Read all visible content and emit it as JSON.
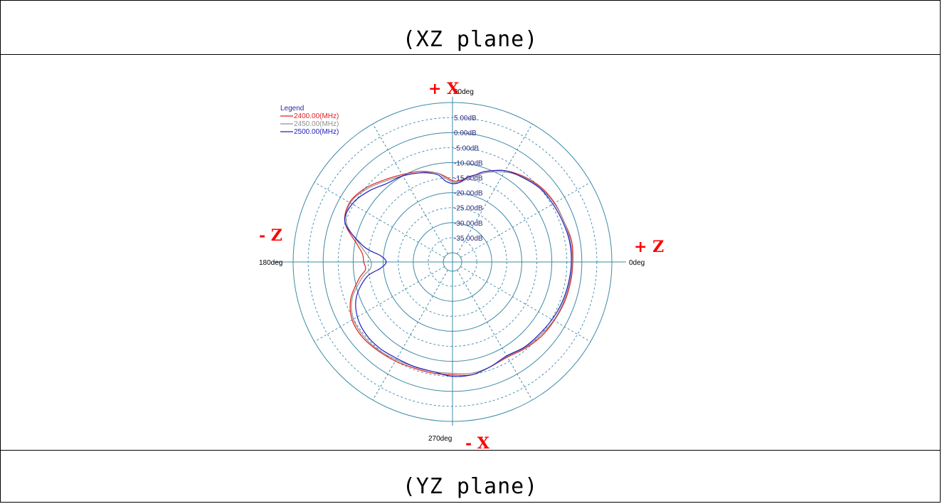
{
  "captions": {
    "top": "(XZ plane)",
    "bottom": "(YZ plane)"
  },
  "chart_data": {
    "type": "polar",
    "legend_title": "Legend",
    "legend_placement": "top-left",
    "angle_labels": {
      "a0": "0deg",
      "a90": "90deg",
      "a180": "180deg",
      "a270": "270deg"
    },
    "radial_range_db": [
      -40,
      10
    ],
    "radial_ticks": [
      {
        "value": 5,
        "label": "5.00dB"
      },
      {
        "value": 0,
        "label": "0.00dB"
      },
      {
        "value": -5,
        "label": "-5.00dB"
      },
      {
        "value": -10,
        "label": "-10.00dB"
      },
      {
        "value": -15,
        "label": "-15.00dB"
      },
      {
        "value": -20,
        "label": "-20.00dB"
      },
      {
        "value": -25,
        "label": "-25.00dB"
      },
      {
        "value": -30,
        "label": "-30.00dB"
      },
      {
        "value": -35,
        "label": "-35.00dB"
      }
    ],
    "axis_annotations": [
      {
        "text": "+ X",
        "angle": 90
      },
      {
        "text": "- X",
        "angle": 270
      },
      {
        "text": "+ Z",
        "angle": 0
      },
      {
        "text": "- Z",
        "angle": 180
      }
    ],
    "annotation_color": "#ff0000",
    "grid_color": "#3c8aa8",
    "series": [
      {
        "name": "2400.00(MHz)",
        "color": "#e02020",
        "angles": [
          0,
          10,
          20,
          30,
          40,
          50,
          60,
          70,
          75,
          80,
          85,
          90,
          95,
          100,
          110,
          120,
          130,
          140,
          150,
          160,
          170,
          175,
          180,
          185,
          190,
          200,
          210,
          220,
          230,
          240,
          250,
          260,
          270,
          280,
          290,
          300,
          310,
          320,
          330,
          340,
          350
        ],
        "values": [
          -3,
          -2.8,
          -3.6,
          -3.8,
          -4.5,
          -6,
          -8,
          -11,
          -13,
          -14.5,
          -16,
          -16,
          -14.5,
          -13,
          -11,
          -9.5,
          -7.5,
          -5,
          -3.5,
          -5,
          -11,
          -13,
          -13.5,
          -14,
          -11.5,
          -7,
          -4.5,
          -4,
          -4.5,
          -5,
          -5.5,
          -5.5,
          -5.5,
          -5,
          -6,
          -6.5,
          -5.5,
          -4.5,
          -4,
          -3.5,
          -3.2
        ]
      },
      {
        "name": "2450.00(MHz)",
        "color": "#909090",
        "angles": [
          0,
          10,
          20,
          30,
          40,
          50,
          60,
          70,
          75,
          80,
          85,
          90,
          95,
          100,
          110,
          120,
          130,
          140,
          150,
          160,
          170,
          175,
          180,
          185,
          190,
          200,
          210,
          220,
          230,
          240,
          250,
          260,
          270,
          280,
          290,
          300,
          310,
          320,
          330,
          340,
          350
        ],
        "values": [
          -3.2,
          -3.2,
          -3.6,
          -4,
          -4.8,
          -6.2,
          -8.5,
          -11.5,
          -13.5,
          -15,
          -16.5,
          -16.5,
          -15,
          -13,
          -11.5,
          -10,
          -8,
          -5.5,
          -3.8,
          -5.5,
          -12,
          -14.5,
          -16,
          -15.5,
          -12.5,
          -7.5,
          -5,
          -4.5,
          -4.8,
          -5.5,
          -6,
          -6,
          -6,
          -5.5,
          -6,
          -6.8,
          -5.8,
          -5,
          -4.2,
          -3.8,
          -3.5
        ]
      },
      {
        "name": "2500.00(MHz)",
        "color": "#2020c0",
        "angles": [
          0,
          10,
          20,
          30,
          40,
          50,
          60,
          70,
          75,
          80,
          85,
          90,
          95,
          100,
          110,
          120,
          130,
          140,
          150,
          160,
          170,
          175,
          180,
          185,
          190,
          200,
          210,
          220,
          230,
          240,
          250,
          260,
          270,
          280,
          290,
          300,
          310,
          320,
          330,
          340,
          350
        ],
        "values": [
          -3.5,
          -3.5,
          -4,
          -4.5,
          -5,
          -6.5,
          -8,
          -11,
          -13,
          -14.5,
          -16.5,
          -17,
          -16,
          -13.5,
          -11.5,
          -10,
          -9,
          -6.5,
          -4.5,
          -5,
          -13,
          -19,
          -21,
          -19,
          -14,
          -9,
          -6.5,
          -5.5,
          -5.5,
          -6,
          -6,
          -6,
          -5,
          -5,
          -6,
          -7,
          -6,
          -5.5,
          -4.8,
          -4.2,
          -3.8
        ]
      }
    ]
  }
}
